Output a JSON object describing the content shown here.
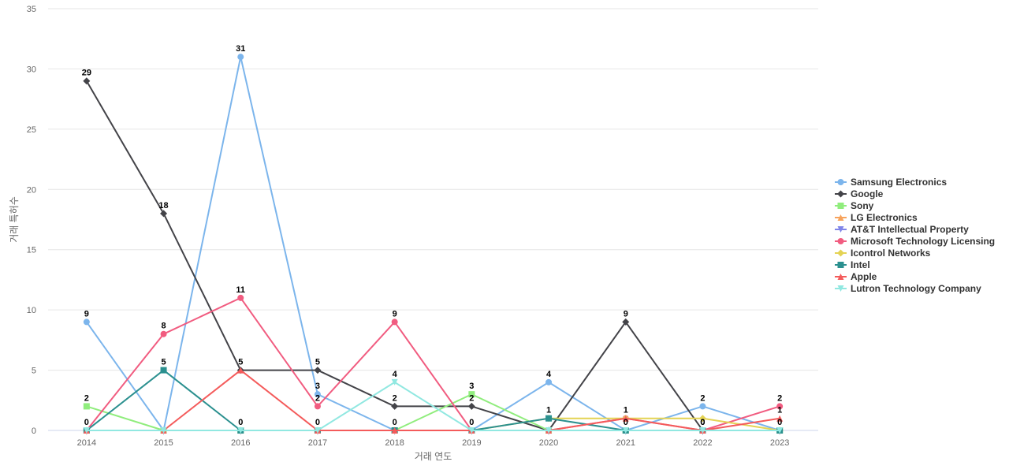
{
  "chart_data": {
    "type": "line",
    "title": "",
    "xlabel": "거래 연도",
    "ylabel": "거래 특허수",
    "ylim": [
      0,
      35
    ],
    "yticks": [
      0,
      5,
      10,
      15,
      20,
      25,
      30,
      35
    ],
    "grid": true,
    "legend_position": "right",
    "categories": [
      "2014",
      "2015",
      "2016",
      "2017",
      "2018",
      "2019",
      "2020",
      "2021",
      "2022",
      "2023"
    ],
    "series": [
      {
        "name": "Samsung Electronics",
        "color": "#7cb5ec",
        "marker": "circle",
        "values": [
          9,
          0,
          31,
          3,
          0,
          0,
          4,
          0,
          2,
          0
        ],
        "labeled": [
          true,
          false,
          true,
          true,
          false,
          false,
          true,
          false,
          true,
          false
        ]
      },
      {
        "name": "Google",
        "color": "#434348",
        "marker": "diamond",
        "values": [
          29,
          18,
          5,
          5,
          2,
          2,
          0,
          9,
          0,
          0
        ],
        "labeled": [
          true,
          true,
          true,
          true,
          true,
          true,
          false,
          true,
          false,
          false
        ]
      },
      {
        "name": "Sony",
        "color": "#90ed7d",
        "marker": "square",
        "values": [
          2,
          0,
          0,
          0,
          0,
          3,
          0,
          0,
          0,
          0
        ],
        "labeled": [
          true,
          false,
          false,
          false,
          false,
          true,
          false,
          false,
          false,
          false
        ]
      },
      {
        "name": "LG Electronics",
        "color": "#f7a35c",
        "marker": "triangle",
        "values": [
          0,
          0,
          0,
          0,
          0,
          0,
          0,
          0,
          0,
          0
        ],
        "labeled": [
          false,
          false,
          false,
          false,
          false,
          false,
          false,
          false,
          false,
          false
        ]
      },
      {
        "name": "AT&T Intellectual Property",
        "color": "#8085e9",
        "marker": "triangle-down",
        "values": [
          0,
          0,
          0,
          0,
          0,
          0,
          0,
          0,
          0,
          0
        ],
        "labeled": [
          false,
          false,
          false,
          false,
          false,
          false,
          false,
          false,
          false,
          false
        ]
      },
      {
        "name": "Microsoft Technology Licensing",
        "color": "#f15c80",
        "marker": "circle",
        "values": [
          0,
          8,
          11,
          2,
          9,
          0,
          0,
          1,
          0,
          2
        ],
        "labeled": [
          false,
          true,
          true,
          true,
          true,
          false,
          false,
          false,
          false,
          true
        ]
      },
      {
        "name": "Icontrol Networks",
        "color": "#e4d354",
        "marker": "diamond",
        "values": [
          0,
          0,
          0,
          0,
          0,
          0,
          1,
          1,
          1,
          0
        ],
        "labeled": [
          false,
          false,
          false,
          false,
          false,
          false,
          false,
          false,
          false,
          false
        ]
      },
      {
        "name": "Intel",
        "color": "#2b908f",
        "marker": "square",
        "values": [
          0,
          5,
          0,
          0,
          0,
          0,
          1,
          0,
          0,
          0
        ],
        "labeled": [
          true,
          true,
          true,
          true,
          true,
          true,
          true,
          true,
          true,
          true
        ]
      },
      {
        "name": "Apple",
        "color": "#f45b5b",
        "marker": "triangle",
        "values": [
          0,
          0,
          5,
          0,
          0,
          0,
          0,
          1,
          0,
          1
        ],
        "labeled": [
          false,
          false,
          false,
          false,
          false,
          false,
          false,
          true,
          true,
          true
        ]
      },
      {
        "name": "Lutron Technology Company",
        "color": "#91e8e1",
        "marker": "triangle-down",
        "values": [
          0,
          0,
          0,
          0,
          4,
          0,
          0,
          0,
          0,
          0
        ],
        "labeled": [
          false,
          false,
          false,
          false,
          true,
          false,
          false,
          false,
          false,
          false
        ]
      }
    ]
  }
}
